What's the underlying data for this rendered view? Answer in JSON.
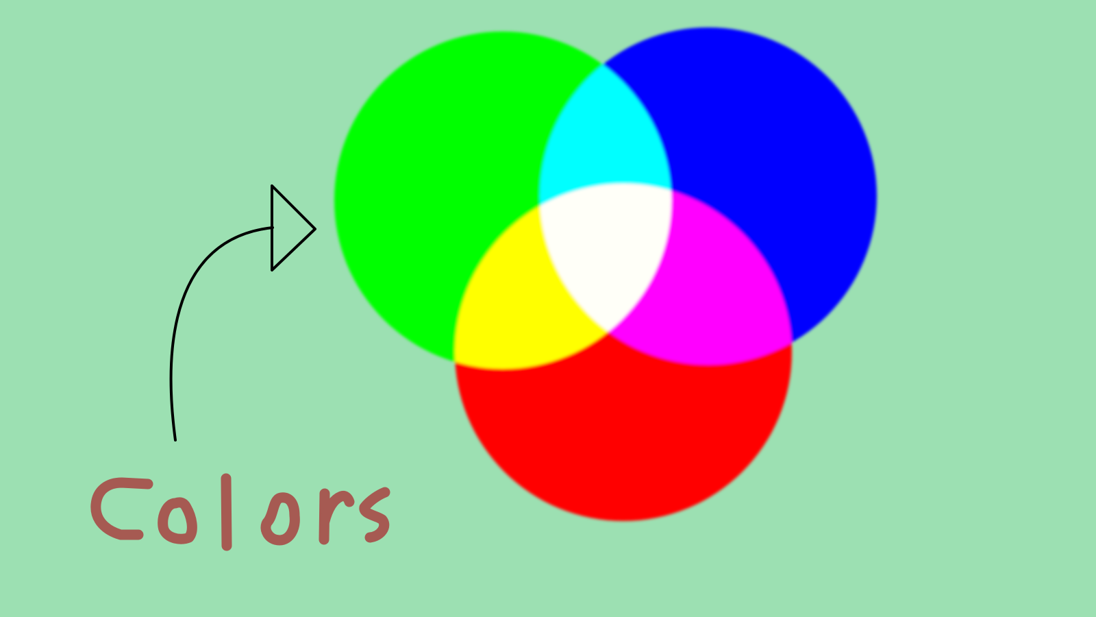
{
  "canvas": {
    "background": "#9ce0b2"
  },
  "circles": [
    {
      "name": "green",
      "color": "#00ff00"
    },
    {
      "name": "blue",
      "color": "#0000ff"
    },
    {
      "name": "red",
      "color": "#ff0000"
    }
  ],
  "overlaps": [
    {
      "name": "cyan",
      "color": "#00ffff"
    },
    {
      "name": "yellow",
      "color": "#ffff00"
    },
    {
      "name": "magenta",
      "color": "#ff00ff"
    },
    {
      "name": "white",
      "color": "#fffff8"
    }
  ],
  "annotation": {
    "label": "Colors",
    "label_color": "#a65a52",
    "arrow_color": "#000000"
  }
}
